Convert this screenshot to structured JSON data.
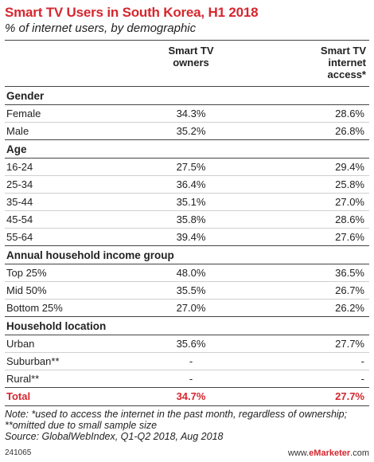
{
  "title": "Smart TV Users in South Korea, H1 2018",
  "subtitle": "% of internet users, by demographic",
  "chart_data": {
    "type": "table",
    "columns": [
      "",
      "Smart TV owners",
      "Smart TV internet access*"
    ],
    "groups": [
      {
        "name": "Gender",
        "rows": [
          {
            "label": "Female",
            "values": [
              "34.3%",
              "28.6%"
            ]
          },
          {
            "label": "Male",
            "values": [
              "35.2%",
              "26.8%"
            ]
          }
        ]
      },
      {
        "name": "Age",
        "rows": [
          {
            "label": "16-24",
            "values": [
              "27.5%",
              "29.4%"
            ]
          },
          {
            "label": "25-34",
            "values": [
              "36.4%",
              "25.8%"
            ]
          },
          {
            "label": "35-44",
            "values": [
              "35.1%",
              "27.0%"
            ]
          },
          {
            "label": "45-54",
            "values": [
              "35.8%",
              "28.6%"
            ]
          },
          {
            "label": "55-64",
            "values": [
              "39.4%",
              "27.6%"
            ]
          }
        ]
      },
      {
        "name": "Annual household income group",
        "rows": [
          {
            "label": "Top 25%",
            "values": [
              "48.0%",
              "36.5%"
            ]
          },
          {
            "label": "Mid 50%",
            "values": [
              "35.5%",
              "26.7%"
            ]
          },
          {
            "label": "Bottom 25%",
            "values": [
              "27.0%",
              "26.2%"
            ]
          }
        ]
      },
      {
        "name": "Household location",
        "rows": [
          {
            "label": "Urban",
            "values": [
              "35.6%",
              "27.7%"
            ]
          },
          {
            "label": "Suburban**",
            "values": [
              "-",
              "-"
            ]
          },
          {
            "label": "Rural**",
            "values": [
              "-",
              "-"
            ]
          }
        ]
      }
    ],
    "total": {
      "label": "Total",
      "values": [
        "34.7%",
        "27.7%"
      ]
    }
  },
  "header": {
    "col1_line1": "Smart TV",
    "col1_line2": "owners",
    "col2_line1": "Smart TV",
    "col2_line2": "internet",
    "col2_line3": "access*"
  },
  "note": "Note: *used to access the internet in the past month, regardless of ownership; **omitted due to small sample size",
  "source": "Source: GlobalWebIndex, Q1-Q2 2018, Aug 2018",
  "footer": {
    "chart_id": "241065",
    "brand_prefix": "www.",
    "brand_name": "eMarketer",
    "brand_suffix": ".com"
  },
  "colors": {
    "accent": "#d6262e",
    "text": "#222222",
    "rule": "#444444",
    "divider": "#cfcfcf"
  }
}
